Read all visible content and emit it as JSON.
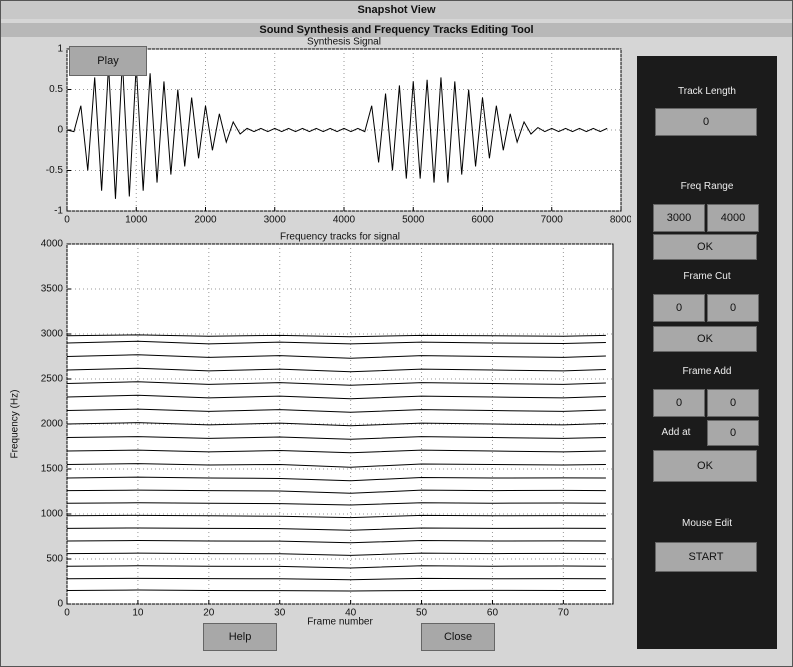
{
  "window": {
    "title": "Snapshot View",
    "subtitle": "Sound Synthesis and Frequency Tracks Editing Tool"
  },
  "buttons": {
    "play": "Play",
    "help": "Help",
    "close": "Close"
  },
  "panel": {
    "track_length": {
      "label": "Track Length",
      "value": "0"
    },
    "freq_range": {
      "label": "Freq Range",
      "from": "3000",
      "to": "4000",
      "ok": "OK"
    },
    "frame_cut": {
      "label": "Frame Cut",
      "from": "0",
      "to": "0",
      "ok": "OK"
    },
    "frame_add": {
      "label": "Frame Add",
      "from": "0",
      "to": "0",
      "add_at_label": "Add at",
      "add_at": "0",
      "ok": "OK"
    },
    "mouse_edit": {
      "label": "Mouse Edit",
      "start": "START"
    }
  },
  "chart_data": [
    {
      "type": "line",
      "title": "Synthesis Signal",
      "color": "#000000",
      "grid": true,
      "x": [
        0,
        100,
        200,
        300,
        400,
        500,
        600,
        700,
        800,
        900,
        1000,
        1100,
        1200,
        1300,
        1400,
        1500,
        1600,
        1700,
        1800,
        1900,
        2000,
        2100,
        2200,
        2300,
        2400,
        2500,
        2600,
        2700,
        2800,
        2900,
        3000,
        3100,
        3200,
        3300,
        3400,
        3500,
        3600,
        3700,
        3800,
        3900,
        4000,
        4100,
        4200,
        4300,
        4400,
        4500,
        4600,
        4700,
        4800,
        4900,
        5000,
        5100,
        5200,
        5300,
        5400,
        5500,
        5600,
        5700,
        5800,
        5900,
        6000,
        6100,
        6200,
        6300,
        6400,
        6500,
        6600,
        6700,
        6800,
        6900,
        7000,
        7100,
        7200,
        7300,
        7400,
        7500,
        7600,
        7700,
        7800
      ],
      "values": [
        0,
        -0.02,
        0.3,
        -0.5,
        0.65,
        -0.75,
        0.8,
        -0.85,
        0.85,
        -0.82,
        0.8,
        -0.75,
        0.7,
        -0.65,
        0.6,
        -0.55,
        0.5,
        -0.45,
        0.4,
        -0.35,
        0.3,
        -0.25,
        0.2,
        -0.15,
        0.1,
        -0.05,
        0.02,
        -0.02,
        0.02,
        -0.02,
        0.02,
        -0.02,
        0.02,
        -0.02,
        0.02,
        -0.02,
        0.02,
        -0.02,
        0.02,
        -0.02,
        0.02,
        -0.02,
        0.02,
        -0.02,
        0.3,
        -0.4,
        0.45,
        -0.5,
        0.55,
        -0.6,
        0.6,
        -0.6,
        0.62,
        -0.65,
        0.65,
        -0.65,
        0.6,
        -0.55,
        0.5,
        -0.45,
        0.4,
        -0.35,
        0.3,
        -0.25,
        0.2,
        -0.15,
        0.1,
        -0.05,
        0.03,
        -0.02,
        0.02,
        -0.02,
        0.02,
        -0.02,
        0.02,
        -0.02,
        0.02,
        -0.02,
        0.02
      ],
      "xlim": [
        0,
        8000
      ],
      "xticks": [
        0,
        1000,
        2000,
        3000,
        4000,
        5000,
        6000,
        7000,
        8000
      ],
      "ylim": [
        -1,
        1
      ],
      "yticks": [
        -1,
        -0.5,
        0,
        0.5,
        1
      ]
    },
    {
      "type": "line",
      "title": "Frequency tracks for signal",
      "xlabel": "Frame number",
      "ylabel": "Frequency (Hz)",
      "color": "#000000",
      "grid": true,
      "x": [
        0,
        10,
        20,
        30,
        40,
        50,
        60,
        70,
        76
      ],
      "series": [
        {
          "values": [
            150,
            155,
            150,
            148,
            145,
            150,
            152,
            150,
            150
          ]
        },
        {
          "values": [
            280,
            285,
            282,
            280,
            270,
            285,
            280,
            282,
            280
          ]
        },
        {
          "values": [
            420,
            425,
            420,
            418,
            400,
            425,
            420,
            422,
            420
          ]
        },
        {
          "values": [
            560,
            565,
            560,
            558,
            540,
            565,
            560,
            562,
            560
          ]
        },
        {
          "values": [
            700,
            705,
            700,
            698,
            680,
            705,
            700,
            702,
            700
          ]
        },
        {
          "values": [
            840,
            845,
            840,
            838,
            820,
            845,
            840,
            842,
            840
          ]
        },
        {
          "values": [
            980,
            985,
            980,
            975,
            960,
            985,
            980,
            982,
            980
          ]
        },
        {
          "values": [
            1120,
            1125,
            1120,
            1115,
            1100,
            1125,
            1120,
            1122,
            1120
          ]
        },
        {
          "values": [
            1260,
            1265,
            1260,
            1255,
            1230,
            1265,
            1260,
            1262,
            1260
          ]
        },
        {
          "values": [
            1400,
            1410,
            1400,
            1395,
            1370,
            1405,
            1400,
            1402,
            1400
          ]
        },
        {
          "values": [
            1550,
            1560,
            1545,
            1550,
            1520,
            1555,
            1550,
            1545,
            1550
          ]
        },
        {
          "values": [
            1700,
            1710,
            1690,
            1705,
            1680,
            1710,
            1700,
            1690,
            1700
          ]
        },
        {
          "values": [
            1850,
            1860,
            1840,
            1855,
            1830,
            1860,
            1850,
            1840,
            1850
          ]
        },
        {
          "values": [
            2000,
            2015,
            1990,
            2010,
            1980,
            2010,
            2000,
            1990,
            2005
          ]
        },
        {
          "values": [
            2150,
            2165,
            2140,
            2160,
            2130,
            2160,
            2150,
            2140,
            2155
          ]
        },
        {
          "values": [
            2300,
            2320,
            2290,
            2310,
            2280,
            2310,
            2300,
            2290,
            2305
          ]
        },
        {
          "values": [
            2450,
            2470,
            2440,
            2460,
            2430,
            2460,
            2450,
            2440,
            2455
          ]
        },
        {
          "values": [
            2600,
            2620,
            2590,
            2610,
            2580,
            2610,
            2600,
            2590,
            2605
          ]
        },
        {
          "values": [
            2750,
            2770,
            2740,
            2760,
            2730,
            2760,
            2750,
            2740,
            2755
          ]
        },
        {
          "values": [
            2900,
            2920,
            2890,
            2910,
            2890,
            2910,
            2900,
            2895,
            2905
          ]
        },
        {
          "values": [
            2980,
            2990,
            2975,
            2985,
            2970,
            2985,
            2980,
            2975,
            2985
          ]
        }
      ],
      "xlim": [
        0,
        77
      ],
      "xticks": [
        0,
        10,
        20,
        30,
        40,
        50,
        60,
        70
      ],
      "ylim": [
        0,
        4000
      ],
      "yticks": [
        0,
        500,
        1000,
        1500,
        2000,
        2500,
        3000,
        3500,
        4000
      ]
    }
  ]
}
